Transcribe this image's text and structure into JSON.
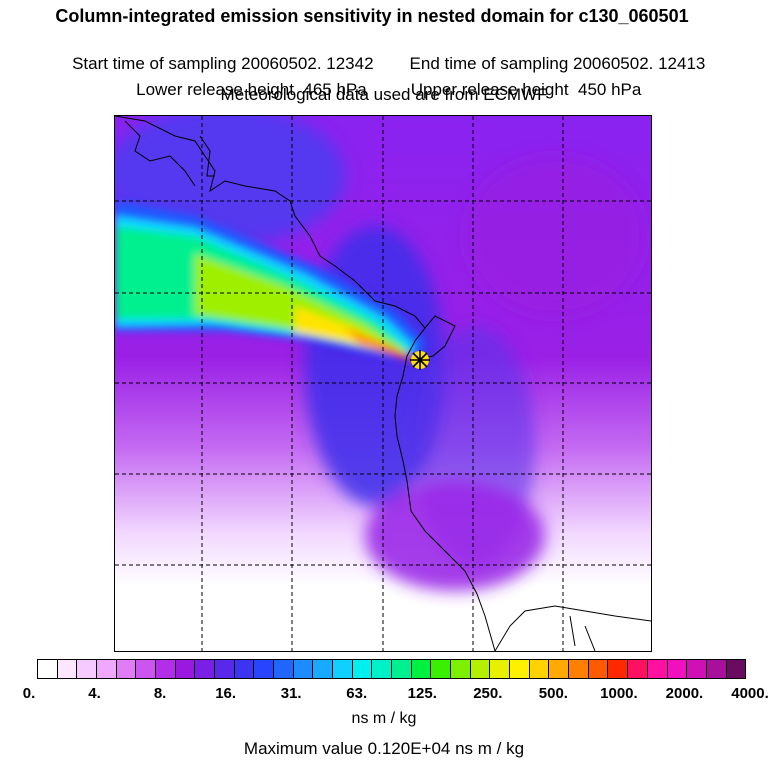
{
  "header": {
    "title": "Column-integrated emission sensitivity in nested domain for c130_060501",
    "start_label": "Start time of sampling 20060502. 12342",
    "end_label": "End time of sampling 20060502. 12413",
    "lower_label": "Lower release height  465 hPa",
    "upper_label": "Upper release height  450 hPa",
    "met_label": "Meteorological data used are from ECMWF"
  },
  "map": {
    "release_marker": "asterisk-star-icon",
    "gridlines": "dashed"
  },
  "colorbar": {
    "tick_labels": [
      "0.",
      "4.",
      "8.",
      "16.",
      "31.",
      "63.",
      "125.",
      "250.",
      "500.",
      "1000.",
      "2000.",
      "4000."
    ],
    "units": "ns m / kg",
    "colors": [
      "#ffffff",
      "#fde6ff",
      "#f7caff",
      "#f0a8ff",
      "#e07cf5",
      "#cc55f0",
      "#b22ee8",
      "#9a18e0",
      "#7b1ee6",
      "#5a28ea",
      "#3c34f0",
      "#2844ff",
      "#2066ff",
      "#1c8cff",
      "#18aaff",
      "#10d0ff",
      "#00f0f0",
      "#00f0c8",
      "#00f090",
      "#00f040",
      "#38f000",
      "#7cf000",
      "#b4f000",
      "#e8f000",
      "#fff000",
      "#ffd200",
      "#ffaa00",
      "#ff8000",
      "#ff5a00",
      "#ff2800",
      "#ff1060",
      "#ff10a0",
      "#f010c0",
      "#d010b4",
      "#a8109c",
      "#6a0a60"
    ]
  },
  "footer": {
    "max_value": "Maximum value  0.120E+04 ns m / kg"
  }
}
